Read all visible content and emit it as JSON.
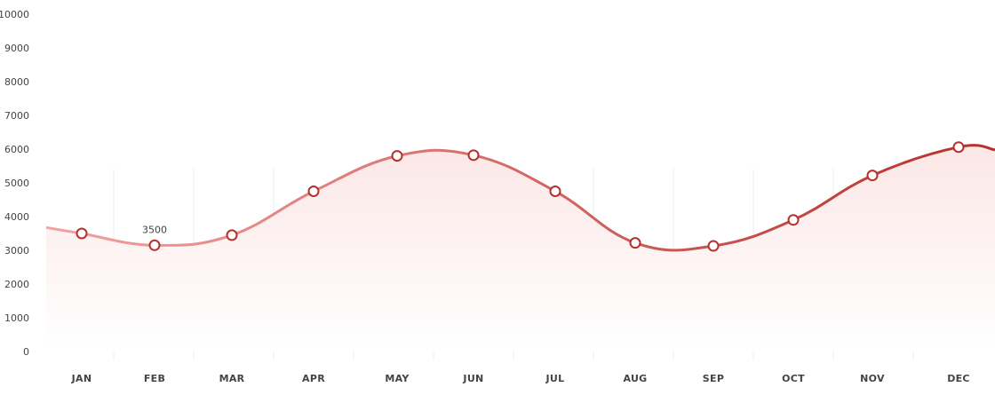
{
  "chart_data": {
    "type": "line",
    "categories": [
      "JAN",
      "FEB",
      "MAR",
      "APR",
      "MAY",
      "JUN",
      "JUL",
      "AUG",
      "SEP",
      "OCT",
      "NOV",
      "DEC"
    ],
    "series": [
      {
        "values": [
          3500,
          3150,
          3450,
          4750,
          5800,
          5820,
          4750,
          3220,
          3130,
          3900,
          5220,
          6060
        ]
      }
    ],
    "yticks": [
      0,
      1000,
      2000,
      3000,
      4000,
      5000,
      6000,
      7000,
      8000,
      9000,
      10000
    ],
    "ylim": [
      0,
      10000
    ],
    "data_labels": [
      {
        "index": 1,
        "text": "3500"
      }
    ],
    "grid": {
      "vertical": true,
      "horizontal": false
    },
    "legend": "none",
    "colors": {
      "line_start": "#f0a3a0",
      "line_end": "#b5302c",
      "marker_stroke": "#b5302c",
      "marker_fill": "#ffffff",
      "area_top": "#fbe7e6",
      "area_bottom": "#ffffff"
    }
  }
}
